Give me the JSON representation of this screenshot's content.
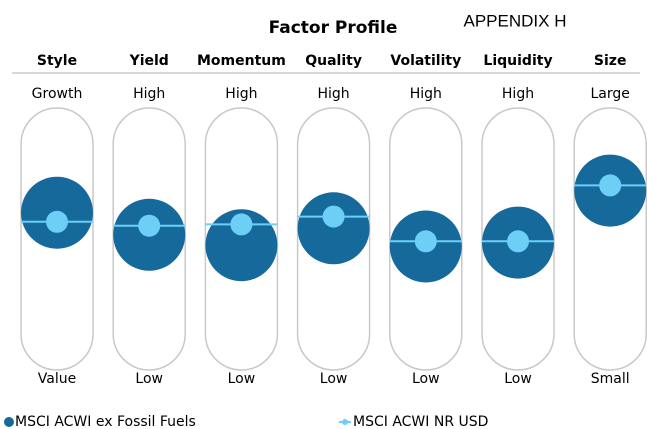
{
  "chart_data": {
    "type": "factor-profile",
    "title": "Factor Profile",
    "subtitle": "APPENDIX H",
    "categories": [
      "Style",
      "Yield",
      "Momentum",
      "Quality",
      "Volatility",
      "Liquidity",
      "Size"
    ],
    "high_labels": [
      "Growth",
      "High",
      "High",
      "High",
      "High",
      "High",
      "Large"
    ],
    "low_labels": [
      "Value",
      "Low",
      "Low",
      "Low",
      "Low",
      "Low",
      "Small"
    ],
    "ylim": [
      -1,
      1
    ],
    "series": [
      {
        "name": "MSCI ACWI ex Fossil Fuels",
        "color": "#16699b",
        "values": [
          0.21,
          0.04,
          -0.04,
          0.09,
          -0.05,
          -0.02,
          0.38
        ]
      },
      {
        "name": "MSCI ACWI NR USD",
        "color": "#6dcff6",
        "values": [
          0.14,
          0.11,
          0.12,
          0.18,
          -0.01,
          -0.01,
          0.42
        ]
      }
    ]
  }
}
